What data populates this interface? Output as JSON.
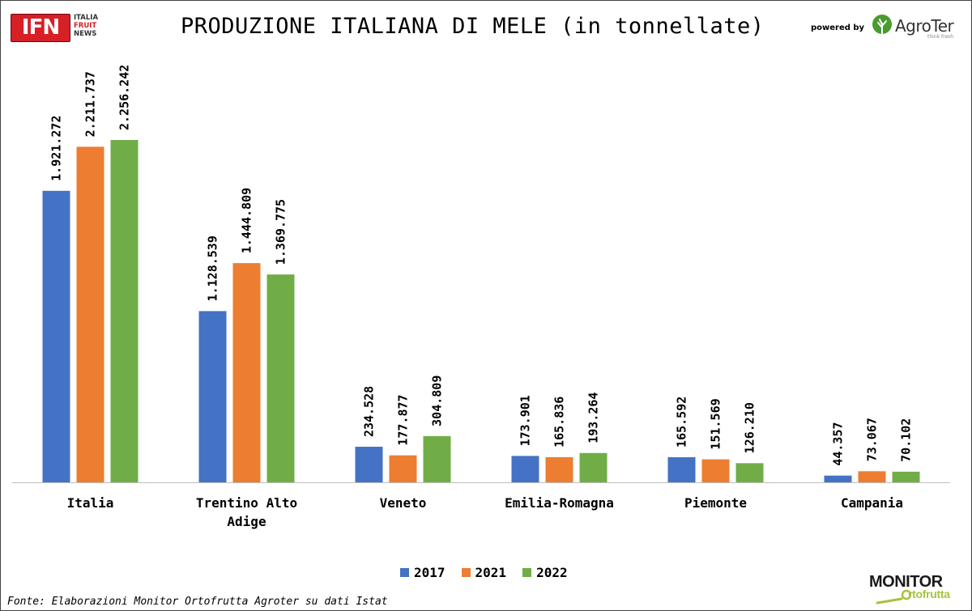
{
  "header": {
    "title": "PRODUZIONE ITALIANA DI MELE (in tonnellate)",
    "ifn_logo": {
      "mark": "IFN",
      "line1": "ITALIA",
      "line2": "FRUIT",
      "line3": "NEWS"
    },
    "powered_by": "powered by",
    "agroter_logo": {
      "name": "AgroTer",
      "tagline": "think fresh"
    }
  },
  "footer": {
    "source": "Fonte: Elaborazioni Monitor Ortofrutta Agroter su dati Istat",
    "monitor_logo": {
      "line1": "MONITOR",
      "line2": "rtofrutta"
    }
  },
  "colors": {
    "series_2017": "#4472c4",
    "series_2021": "#ed7d31",
    "series_2022": "#70ad47",
    "ifn_red": "#d71f26",
    "agroter_green": "#4a9b2f",
    "monitor_green": "#a6c33a"
  },
  "chart_data": {
    "type": "bar",
    "title": "PRODUZIONE ITALIANA DI MELE (in tonnellate)",
    "xlabel": "",
    "ylabel": "",
    "ylim": [
      0,
      2256242
    ],
    "grid": false,
    "legend_position": "bottom",
    "categories": [
      [
        "Italia"
      ],
      [
        "Trentino Alto",
        "Adige"
      ],
      [
        "Veneto"
      ],
      [
        "Emilia-Romagna"
      ],
      [
        "Piemonte"
      ],
      [
        "Campania"
      ]
    ],
    "series": [
      {
        "name": "2017",
        "color": "#4472c4",
        "values": [
          1921272,
          1128539,
          234528,
          173901,
          165592,
          44357
        ],
        "labels": [
          "1.921.272",
          "1.128.539",
          "234.528",
          "173.901",
          "165.592",
          "44.357"
        ]
      },
      {
        "name": "2021",
        "color": "#ed7d31",
        "values": [
          2211737,
          1444809,
          177877,
          165836,
          151569,
          73067
        ],
        "labels": [
          "2.211.737",
          "1.444.809",
          "177.877",
          "165.836",
          "151.569",
          "73.067"
        ]
      },
      {
        "name": "2022",
        "color": "#70ad47",
        "values": [
          2256242,
          1369775,
          304809,
          193264,
          126210,
          70102
        ],
        "labels": [
          "2.256.242",
          "1.369.775",
          "304.809",
          "193.264",
          "126.210",
          "70.102"
        ]
      }
    ]
  }
}
